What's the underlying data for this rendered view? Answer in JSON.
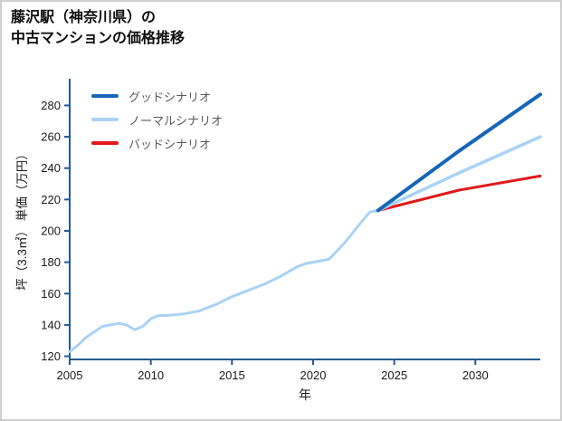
{
  "title": {
    "line1": "藤沢駅（神奈川県）の",
    "line2": "中古マンションの価格推移"
  },
  "chart_data": {
    "type": "line",
    "xlabel": "年",
    "ylabel": "坪（3.3㎡） 単価（万円）",
    "xlim": [
      2005,
      2034
    ],
    "ylim": [
      118,
      297
    ],
    "xticks": [
      2005,
      2010,
      2015,
      2020,
      2025,
      2030
    ],
    "yticks": [
      120,
      140,
      160,
      180,
      200,
      220,
      240,
      260,
      280
    ],
    "grid": false,
    "axis_color": "#235a91",
    "tick_label_color": "#1a1a1a",
    "legend_position": "upper-left",
    "legend": [
      {
        "label": "グッドシナリオ",
        "color": "#1766b8",
        "series": "good"
      },
      {
        "label": "ノーマルシナリオ",
        "color": "#a9d3f5",
        "series": "normal"
      },
      {
        "label": "バッドシナリオ",
        "color": "#e01a1a",
        "series": "bad"
      }
    ],
    "series": [
      {
        "name": "historical",
        "color": "#a9d3f5",
        "width": 3,
        "x": [
          2005,
          2005.5,
          2006,
          2007,
          2008,
          2008.5,
          2009,
          2009.5,
          2010,
          2010.5,
          2011,
          2012,
          2013,
          2014,
          2015,
          2016,
          2017,
          2018,
          2019,
          2019.5,
          2020,
          2021,
          2022,
          2023,
          2023.5,
          2024
        ],
        "y": [
          123,
          127,
          132,
          139,
          141,
          140,
          137,
          139,
          144,
          146,
          146,
          147,
          149,
          153,
          158,
          162,
          166,
          171,
          177,
          179,
          180,
          182,
          193,
          206,
          212,
          213
        ]
      },
      {
        "name": "bad",
        "color": "#e01a1a",
        "width": 3,
        "x": [
          2024,
          2029,
          2034
        ],
        "y": [
          213,
          226,
          235
        ]
      },
      {
        "name": "normal",
        "color": "#a9d3f5",
        "width": 3.5,
        "x": [
          2024,
          2029,
          2034
        ],
        "y": [
          213,
          237,
          260
        ]
      },
      {
        "name": "good",
        "color": "#1766b8",
        "width": 4,
        "x": [
          2024,
          2029,
          2034
        ],
        "y": [
          213,
          251,
          287
        ]
      }
    ]
  }
}
